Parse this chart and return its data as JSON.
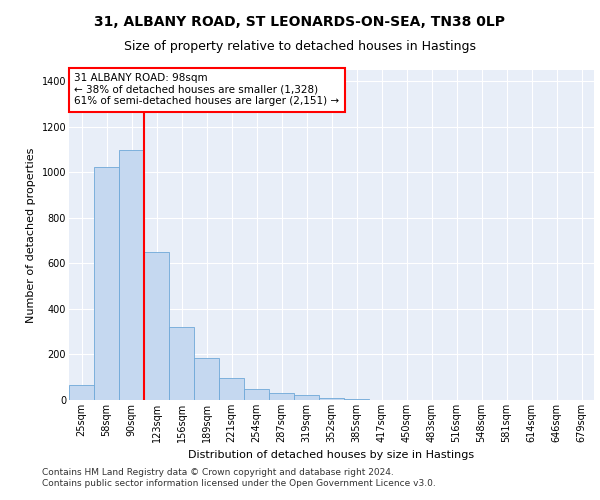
{
  "title1": "31, ALBANY ROAD, ST LEONARDS-ON-SEA, TN38 0LP",
  "title2": "Size of property relative to detached houses in Hastings",
  "xlabel": "Distribution of detached houses by size in Hastings",
  "ylabel": "Number of detached properties",
  "bin_labels": [
    "25sqm",
    "58sqm",
    "90sqm",
    "123sqm",
    "156sqm",
    "189sqm",
    "221sqm",
    "254sqm",
    "287sqm",
    "319sqm",
    "352sqm",
    "385sqm",
    "417sqm",
    "450sqm",
    "483sqm",
    "516sqm",
    "548sqm",
    "581sqm",
    "614sqm",
    "646sqm",
    "679sqm"
  ],
  "bar_values": [
    65,
    1025,
    1100,
    650,
    320,
    185,
    95,
    50,
    30,
    20,
    10,
    5,
    0,
    0,
    0,
    0,
    0,
    0,
    0,
    0,
    0
  ],
  "bar_color": "#c5d8f0",
  "bar_edge_color": "#6ea8d8",
  "vline_color": "red",
  "annotation_line1": "31 ALBANY ROAD: 98sqm",
  "annotation_line2": "← 38% of detached houses are smaller (1,328)",
  "annotation_line3": "61% of semi-detached houses are larger (2,151) →",
  "annotation_box_fc": "white",
  "annotation_box_ec": "red",
  "ylim": [
    0,
    1450
  ],
  "yticks": [
    0,
    200,
    400,
    600,
    800,
    1000,
    1200,
    1400
  ],
  "footer_line1": "Contains HM Land Registry data © Crown copyright and database right 2024.",
  "footer_line2": "Contains public sector information licensed under the Open Government Licence v3.0.",
  "bg_color": "#e8eef8",
  "grid_color": "#ffffff",
  "title1_fontsize": 10,
  "title2_fontsize": 9,
  "axis_fontsize": 8,
  "tick_fontsize": 7,
  "footer_fontsize": 6.5
}
